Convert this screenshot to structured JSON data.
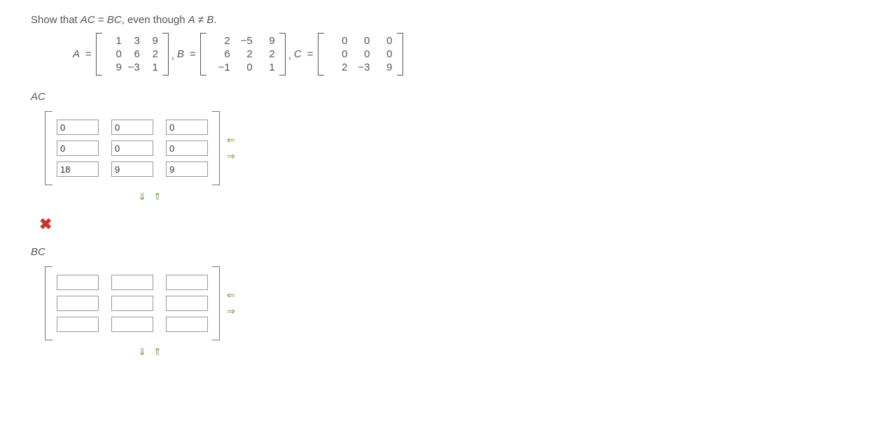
{
  "prompt": {
    "pre": "Show that ",
    "ac": "AC",
    "mid1": " = ",
    "bc": "BC",
    "mid2": ", even though ",
    "a": "A",
    "neq": " ≠ ",
    "b": "B",
    "post": "."
  },
  "matrixA": {
    "label": "A",
    "rows": [
      [
        "1",
        "3",
        "9"
      ],
      [
        "0",
        "6",
        "2"
      ],
      [
        "9",
        "−3",
        "1"
      ]
    ]
  },
  "matrixB": {
    "label": "B",
    "rows": [
      [
        "2",
        "−5",
        "9"
      ],
      [
        "6",
        "2",
        "2"
      ],
      [
        "−1",
        "0",
        "1"
      ]
    ]
  },
  "matrixC": {
    "label": "C",
    "rows": [
      [
        "0",
        "0",
        "0"
      ],
      [
        "0",
        "0",
        "0"
      ],
      [
        "2",
        "−3",
        "9"
      ]
    ]
  },
  "section_ac": "AC",
  "section_bc": "BC",
  "ac_inputs": [
    [
      "0",
      "0",
      "0"
    ],
    [
      "0",
      "0",
      "0"
    ],
    [
      "18",
      "9",
      "9"
    ]
  ],
  "bc_inputs": [
    [
      "",
      "",
      ""
    ],
    [
      "",
      "",
      ""
    ],
    [
      "",
      "",
      ""
    ]
  ],
  "arrows": {
    "left": "⇐",
    "right": "⇒",
    "down": "⇓",
    "up": "⇑"
  },
  "x_symbol": "✖",
  "colors": {
    "text": "#555555",
    "arrow": "#6b9b4a",
    "x": "#cc3333",
    "input_border": "#999999"
  }
}
